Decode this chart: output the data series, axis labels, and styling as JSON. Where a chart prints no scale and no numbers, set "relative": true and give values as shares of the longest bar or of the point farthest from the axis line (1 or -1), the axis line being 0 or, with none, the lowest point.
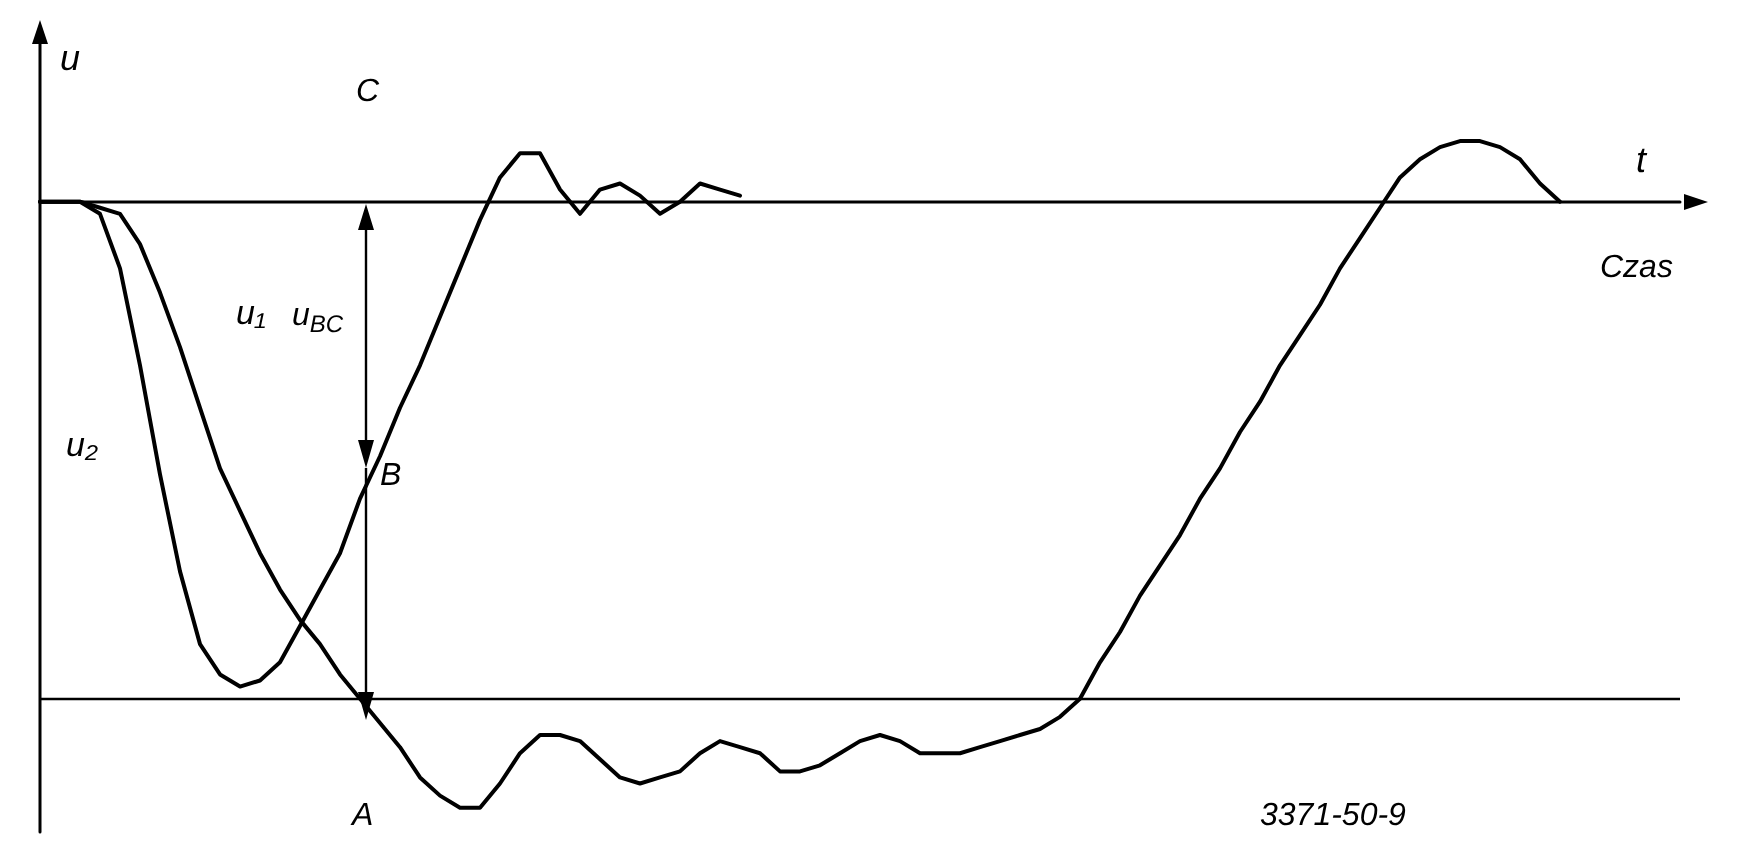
{
  "chart_data": {
    "type": "line",
    "relative": true,
    "ylabel": "u",
    "xlabel": "t",
    "legend": false,
    "marker": "none",
    "line_style": "solid",
    "grid": false,
    "categories": [
      null,
      null,
      null,
      null,
      null,
      null,
      null,
      null,
      null,
      null,
      null,
      null,
      null,
      null,
      null,
      null,
      null,
      null,
      null,
      null,
      null,
      null,
      null,
      null,
      null,
      null,
      null,
      null,
      null,
      null,
      null,
      null,
      null,
      null,
      null,
      null,
      null,
      null,
      null,
      null,
      null,
      null,
      null,
      null,
      null,
      null,
      null,
      null,
      null,
      null,
      null,
      null,
      null,
      null,
      null,
      null,
      null,
      null,
      null,
      null,
      null,
      null,
      null,
      null,
      null,
      null,
      null,
      null,
      null,
      null,
      null,
      null,
      null,
      null,
      null,
      null,
      null,
      null,
      null,
      null,
      null,
      null,
      null
    ],
    "series": [
      {
        "name": "u₁",
        "color": "#000000",
        "values": [
          0,
          0,
          0,
          -0.01,
          -0.02,
          -0.07,
          -0.15,
          -0.24,
          -0.34,
          -0.44,
          -0.51,
          -0.58,
          -0.64,
          -0.69,
          -0.73,
          -0.78,
          -0.82,
          -0.86,
          -0.9,
          -0.95,
          -0.98,
          -1,
          -1,
          -0.96,
          -0.91,
          -0.88,
          -0.88,
          -0.89,
          -0.92,
          -0.95,
          -0.96,
          -0.95,
          -0.94,
          -0.91,
          -0.89,
          -0.9,
          -0.91,
          -0.94,
          -0.94,
          -0.93,
          -0.91,
          -0.89,
          -0.88,
          -0.89,
          -0.91,
          -0.91,
          -0.91,
          -0.9,
          -0.89,
          -0.88,
          -0.87,
          -0.85,
          -0.82,
          -0.76,
          -0.71,
          -0.65,
          -0.6,
          -0.55,
          -0.49,
          -0.44,
          -0.38,
          -0.33,
          -0.27,
          -0.22,
          -0.17,
          -0.11,
          -0.06,
          -0.01,
          0.04,
          0.07,
          0.09,
          0.1,
          0.1,
          0.09,
          0.07,
          0.03,
          0,
          null,
          null,
          null,
          null,
          null,
          null
        ]
      },
      {
        "name": "u₂",
        "color": "#000000",
        "values": [
          0,
          0,
          0,
          -0.02,
          -0.11,
          -0.27,
          -0.45,
          -0.61,
          -0.73,
          -0.78,
          -0.8,
          -0.79,
          -0.76,
          -0.7,
          -0.64,
          -0.58,
          -0.49,
          -0.42,
          -0.34,
          -0.27,
          -0.19,
          -0.11,
          -0.03,
          0.04,
          0.08,
          0.08,
          0.02,
          -0.02,
          0.02,
          0.03,
          0.01,
          -0.02,
          0,
          0.03,
          0.02,
          0.01,
          null,
          null,
          null,
          null,
          null,
          null,
          null,
          null,
          null,
          null,
          null,
          null,
          null,
          null,
          null,
          null,
          null,
          null,
          null,
          null,
          null,
          null,
          null,
          null,
          null,
          null,
          null,
          null,
          null,
          null,
          null,
          null,
          null,
          null,
          null,
          null,
          null,
          null,
          null,
          null,
          null,
          null,
          null,
          null,
          null,
          null,
          null
        ]
      }
    ],
    "ref_lines": [
      {
        "axis": "y",
        "value": -0.82,
        "color": "#000000",
        "line_style": "solid"
      }
    ],
    "annotations": [
      "C",
      "B",
      "A",
      "u$_{BC}$",
      "Czas",
      "3371-50-9"
    ]
  }
}
